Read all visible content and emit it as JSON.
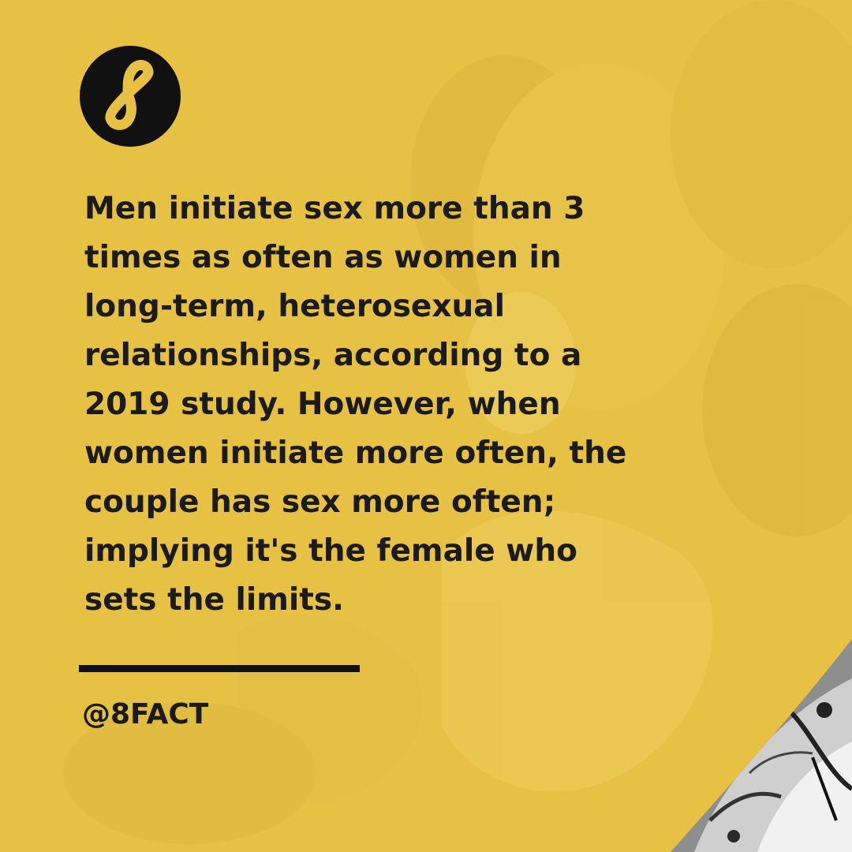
{
  "brand": {
    "logo_icon": "infinity-eight-icon",
    "primary_color": "#e7c143",
    "ink_color": "#111111"
  },
  "fact": {
    "text": "Men initiate sex more than 3\ntimes as often as women in\nlong-term, heterosexual\nrelationships, according to a\n2019 study. However, when\nwomen initiate more often, the\ncouple has sex more often;\nimplying it's the female who\nsets the limits."
  },
  "footer": {
    "handle": "@8FACT"
  },
  "background": {
    "description_icon": "vintage-photo-overlay",
    "corner_photo_icon": "black-white-photo-corner"
  }
}
